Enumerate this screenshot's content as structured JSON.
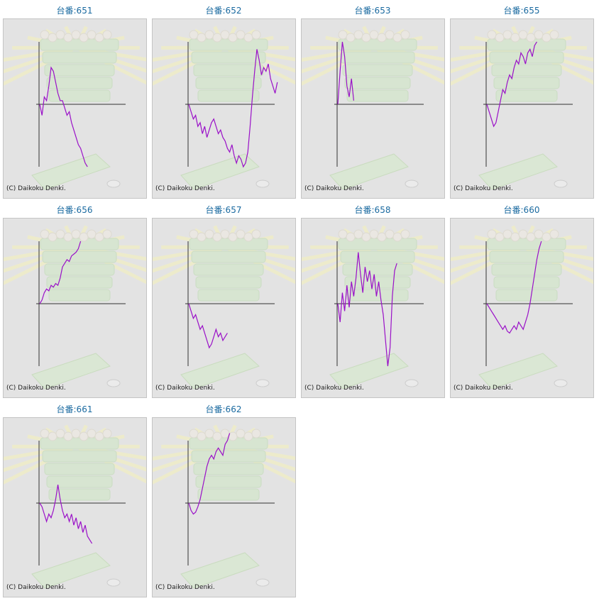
{
  "copyright": "(C) Daikoku Denki.",
  "colors": {
    "title": "#1a6aa0",
    "line": "#9a10c8",
    "axis": "#333333",
    "panel_bg": "#e3e3e3"
  },
  "chart_data": [
    {
      "type": "line",
      "title": "台番:651",
      "y": [
        0,
        -0.3,
        0.2,
        0.1,
        0.5,
        1,
        0.9,
        0.6,
        0.3,
        0.1,
        0.1,
        -0.1,
        -0.3,
        -0.2,
        -0.5,
        -0.7,
        -0.9,
        -1.1,
        -1.2,
        -1.4,
        -1.6,
        -1.7
      ]
    },
    {
      "type": "line",
      "title": "台番:652",
      "y": [
        0,
        -0.2,
        -0.4,
        -0.3,
        -0.6,
        -0.5,
        -0.8,
        -0.6,
        -0.9,
        -0.7,
        -0.5,
        -0.4,
        -0.6,
        -0.8,
        -0.7,
        -0.9,
        -1,
        -1.2,
        -1.3,
        -1.1,
        -1.4,
        -1.6,
        -1.4,
        -1.5,
        -1.7,
        -1.6,
        -1.3,
        -0.6,
        0.2,
        0.9,
        1.5,
        1.2,
        0.8,
        1.0,
        0.9,
        1.1,
        0.7,
        0.5,
        0.3,
        0.6
      ]
    },
    {
      "type": "line",
      "title": "台番:653",
      "y": [
        0,
        0.9,
        1.7,
        1.3,
        0.5,
        0.2,
        0.7,
        0.1
      ]
    },
    {
      "type": "line",
      "title": "台番:655",
      "y": [
        0,
        -0.2,
        -0.4,
        -0.6,
        -0.5,
        -0.2,
        0.1,
        0.4,
        0.3,
        0.6,
        0.8,
        0.7,
        1,
        1.2,
        1.1,
        1.4,
        1.3,
        1.1,
        1.4,
        1.5,
        1.3,
        1.6,
        1.7
      ]
    },
    {
      "type": "line",
      "title": "台番:656",
      "y": [
        0,
        0.1,
        0.3,
        0.4,
        0.35,
        0.5,
        0.45,
        0.55,
        0.5,
        0.7,
        1,
        1.1,
        1.2,
        1.15,
        1.3,
        1.35,
        1.4,
        1.5,
        1.7
      ]
    },
    {
      "type": "line",
      "title": "台番:657",
      "y": [
        0,
        -0.2,
        -0.4,
        -0.3,
        -0.5,
        -0.7,
        -0.6,
        -0.8,
        -1.0,
        -1.2,
        -1.1,
        -0.9,
        -0.7,
        -0.9,
        -0.8,
        -1.0,
        -0.9,
        -0.8
      ]
    },
    {
      "type": "line",
      "title": "台番:658",
      "y": [
        0,
        -0.5,
        0.3,
        -0.2,
        0.5,
        -0.1,
        0.6,
        0.2,
        0.7,
        1.4,
        0.8,
        0.3,
        1.0,
        0.6,
        0.9,
        0.4,
        0.8,
        0.2,
        0.6,
        0.1,
        -0.3,
        -1.0,
        -1.7,
        -1.2,
        0.2,
        0.9,
        1.1
      ]
    },
    {
      "type": "line",
      "title": "台番:660",
      "y": [
        0,
        -0.1,
        -0.2,
        -0.3,
        -0.4,
        -0.5,
        -0.6,
        -0.7,
        -0.6,
        -0.75,
        -0.8,
        -0.7,
        -0.6,
        -0.7,
        -0.5,
        -0.6,
        -0.7,
        -0.5,
        -0.3,
        0,
        0.4,
        0.8,
        1.2,
        1.5,
        1.7
      ]
    },
    {
      "type": "line",
      "title": "台番:661",
      "y": [
        0,
        -0.1,
        -0.3,
        -0.5,
        -0.3,
        -0.4,
        -0.2,
        0.1,
        0.5,
        0.1,
        -0.2,
        -0.4,
        -0.3,
        -0.5,
        -0.3,
        -0.6,
        -0.4,
        -0.7,
        -0.5,
        -0.8,
        -0.6,
        -0.9,
        -1.0,
        -1.1
      ]
    },
    {
      "type": "line",
      "title": "台番:662",
      "y": [
        0,
        -0.2,
        -0.3,
        -0.25,
        -0.1,
        0.1,
        0.4,
        0.7,
        1,
        1.2,
        1.3,
        1.2,
        1.4,
        1.5,
        1.4,
        1.3,
        1.6,
        1.7,
        1.9
      ]
    }
  ]
}
